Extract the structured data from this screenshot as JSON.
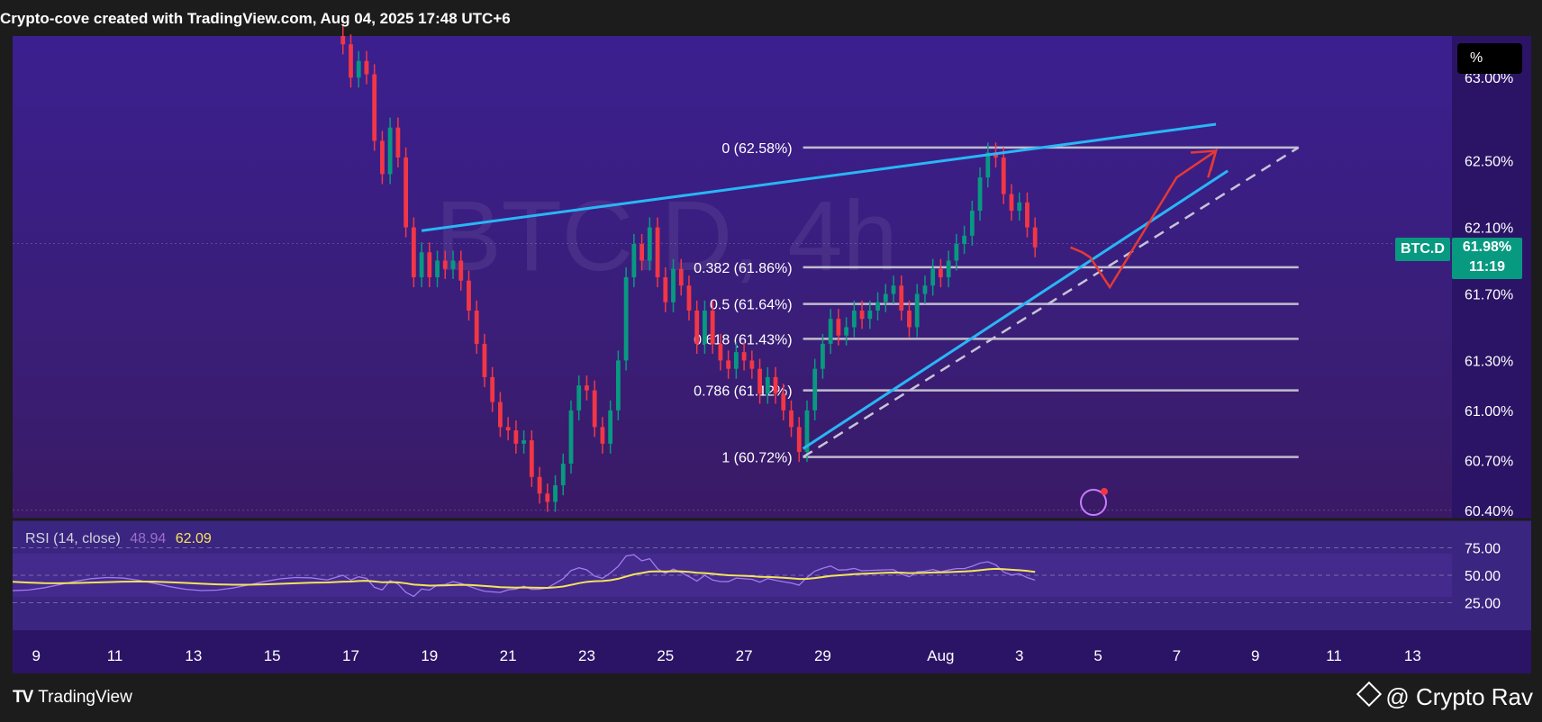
{
  "header": {
    "title": "Crypto-cove created with TradingView.com, Aug 04, 2025 17:48 UTC+6"
  },
  "footer": {
    "logo_text": "TradingView",
    "author": "@ Crypto Rav"
  },
  "toolbar": {
    "percent_label": "%"
  },
  "badges": {
    "symbol": "BTC.D",
    "price": "61.98%",
    "countdown": "11:19"
  },
  "rsi": {
    "name": "RSI (14, close)",
    "value": "48.94",
    "ma_value": "62.09"
  },
  "colors": {
    "background_top": "#331a80",
    "background_bottom": "#3a1a6e",
    "up": "#089981",
    "down": "#f23645",
    "trendline": "#29b6f6",
    "fib": "#cfcfd6",
    "arrow": "#e53935",
    "rsi_line": "#b388ff",
    "rsi_ma": "#f6e35a"
  },
  "chart_data": {
    "type": "candlestick",
    "symbol": "BTC.D",
    "timeframe": "4h",
    "y_ticks": [
      "63.00%",
      "62.50%",
      "62.10%",
      "61.70%",
      "61.30%",
      "61.00%",
      "60.70%",
      "60.40%"
    ],
    "y_tick_values": [
      63.0,
      62.5,
      62.1,
      61.7,
      61.3,
      61.0,
      60.7,
      60.4
    ],
    "x_ticks": [
      "9",
      "11",
      "13",
      "15",
      "17",
      "19",
      "21",
      "23",
      "25",
      "27",
      "29",
      "Aug",
      "3",
      "5",
      "7",
      "9",
      "11",
      "13"
    ],
    "x_tick_days": [
      9,
      11,
      13,
      15,
      17,
      19,
      21,
      23,
      25,
      27,
      29,
      32,
      34,
      36,
      38,
      40,
      42,
      44
    ],
    "ylim": [
      60.35,
      63.25
    ],
    "xlim": [
      8.4,
      45.0
    ],
    "fib_levels": [
      {
        "label": "0 (62.58%)",
        "value": 62.58
      },
      {
        "label": "0.382 (61.86%)",
        "value": 61.86
      },
      {
        "label": "0.5 (61.64%)",
        "value": 61.64
      },
      {
        "label": "0.618 (61.43%)",
        "value": 61.43
      },
      {
        "label": "0.786 (61.12%)",
        "value": 61.12
      },
      {
        "label": "1 (60.72%)",
        "value": 60.72
      }
    ],
    "fib_x_range": [
      28.5,
      41.1
    ],
    "trend_lines": [
      {
        "kind": "resistance",
        "points": [
          [
            18.8,
            62.08
          ],
          [
            39.0,
            62.72
          ]
        ]
      },
      {
        "kind": "support",
        "points": [
          [
            28.5,
            60.77
          ],
          [
            39.3,
            62.44
          ]
        ]
      },
      {
        "kind": "dashed",
        "points": [
          [
            28.5,
            60.72
          ],
          [
            41.1,
            62.58
          ]
        ]
      }
    ],
    "projection_path": [
      [
        35.3,
        61.98
      ],
      [
        35.6,
        61.95
      ],
      [
        35.8,
        61.92
      ],
      [
        36.3,
        61.74
      ],
      [
        38.0,
        62.4
      ],
      [
        39.0,
        62.56
      ],
      [
        38.8,
        62.4
      ]
    ],
    "candles_close": [
      [
        16.8,
        63.2
      ],
      [
        17.0,
        63.0
      ],
      [
        17.2,
        63.1
      ],
      [
        17.4,
        63.02
      ],
      [
        17.6,
        62.62
      ],
      [
        17.8,
        62.42
      ],
      [
        18.0,
        62.7
      ],
      [
        18.2,
        62.52
      ],
      [
        18.4,
        62.1
      ],
      [
        18.6,
        61.8
      ],
      [
        18.8,
        61.95
      ],
      [
        19.0,
        61.8
      ],
      [
        19.2,
        61.9
      ],
      [
        19.4,
        61.85
      ],
      [
        19.6,
        61.9
      ],
      [
        19.8,
        61.78
      ],
      [
        20.0,
        61.6
      ],
      [
        20.2,
        61.4
      ],
      [
        20.4,
        61.2
      ],
      [
        20.6,
        61.05
      ],
      [
        20.8,
        60.9
      ],
      [
        21.0,
        60.88
      ],
      [
        21.2,
        60.8
      ],
      [
        21.4,
        60.82
      ],
      [
        21.6,
        60.6
      ],
      [
        21.8,
        60.5
      ],
      [
        22.0,
        60.45
      ],
      [
        22.2,
        60.55
      ],
      [
        22.4,
        60.68
      ],
      [
        22.6,
        61.0
      ],
      [
        22.8,
        61.15
      ],
      [
        23.0,
        61.12
      ],
      [
        23.2,
        60.9
      ],
      [
        23.4,
        60.8
      ],
      [
        23.6,
        61.0
      ],
      [
        23.8,
        61.3
      ],
      [
        24.0,
        61.8
      ],
      [
        24.2,
        62.0
      ],
      [
        24.4,
        61.9
      ],
      [
        24.6,
        62.1
      ],
      [
        24.8,
        61.8
      ],
      [
        25.0,
        61.65
      ],
      [
        25.2,
        61.85
      ],
      [
        25.4,
        61.75
      ],
      [
        25.6,
        61.6
      ],
      [
        25.8,
        61.4
      ],
      [
        26.0,
        61.6
      ],
      [
        26.2,
        61.4
      ],
      [
        26.4,
        61.3
      ],
      [
        26.6,
        61.25
      ],
      [
        26.8,
        61.35
      ],
      [
        27.0,
        61.3
      ],
      [
        27.2,
        61.25
      ],
      [
        27.4,
        61.1
      ],
      [
        27.6,
        61.2
      ],
      [
        27.8,
        61.1
      ],
      [
        28.0,
        61.0
      ],
      [
        28.2,
        60.9
      ],
      [
        28.4,
        60.75
      ],
      [
        28.6,
        61.0
      ],
      [
        28.8,
        61.25
      ],
      [
        29.0,
        61.4
      ],
      [
        29.2,
        61.55
      ],
      [
        29.4,
        61.45
      ],
      [
        29.6,
        61.5
      ],
      [
        29.8,
        61.6
      ],
      [
        30.0,
        61.55
      ],
      [
        30.2,
        61.6
      ],
      [
        30.4,
        61.65
      ],
      [
        30.6,
        61.7
      ],
      [
        30.8,
        61.75
      ],
      [
        31.0,
        61.6
      ],
      [
        31.2,
        61.5
      ],
      [
        31.4,
        61.7
      ],
      [
        31.6,
        61.75
      ],
      [
        31.8,
        61.85
      ],
      [
        32.0,
        61.8
      ],
      [
        32.2,
        61.9
      ],
      [
        32.4,
        62.0
      ],
      [
        32.6,
        62.05
      ],
      [
        32.8,
        62.2
      ],
      [
        33.0,
        62.4
      ],
      [
        33.2,
        62.55
      ],
      [
        33.4,
        62.52
      ],
      [
        33.6,
        62.3
      ],
      [
        33.8,
        62.2
      ],
      [
        34.0,
        62.25
      ],
      [
        34.2,
        62.1
      ],
      [
        34.4,
        61.98
      ]
    ],
    "rsi_ylim": [
      0,
      100
    ],
    "rsi_ticks": [
      "75.00",
      "50.00",
      "25.00"
    ],
    "rsi_tick_values": [
      75,
      50,
      25
    ]
  }
}
